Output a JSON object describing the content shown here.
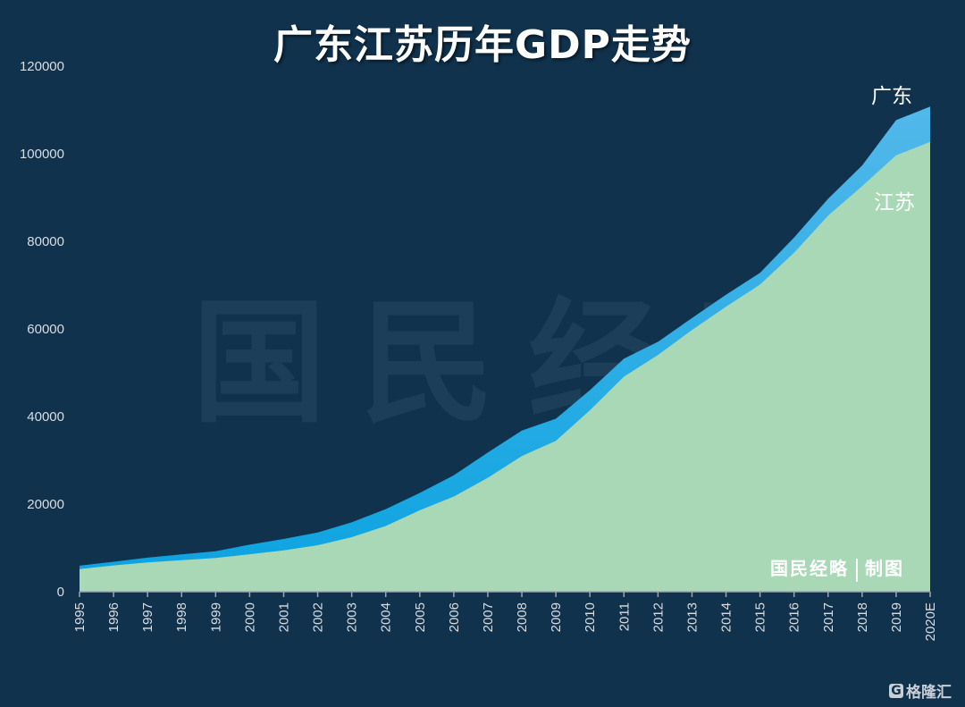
{
  "title": "广东江苏历年GDP走势",
  "labels": {
    "guangdong": "广东",
    "jiangsu": "江苏"
  },
  "watermark": "国民经略",
  "credit": {
    "org": "国民经略",
    "role": "制图"
  },
  "logo": {
    "icon": "G",
    "text": "格隆汇"
  },
  "colors": {
    "background": "#10324d",
    "guangdong_bottom": "#0aa3e0",
    "guangdong_top": "#52b8ea",
    "jiangsu": "#a8d8b6",
    "axis": "#9aa5b0",
    "tick_text": "#d9dde2"
  },
  "chart_data": {
    "type": "area",
    "title": "广东江苏历年GDP走势",
    "xlabel": "",
    "ylabel": "",
    "ylim": [
      0,
      120000
    ],
    "yticks": [
      0,
      20000,
      40000,
      60000,
      80000,
      100000,
      120000
    ],
    "grid": false,
    "legend": "inline labels at right end",
    "categories": [
      "1995",
      "1996",
      "1997",
      "1998",
      "1999",
      "2000",
      "2001",
      "2002",
      "2003",
      "2004",
      "2005",
      "2006",
      "2007",
      "2008",
      "2009",
      "2010",
      "2011",
      "2012",
      "2013",
      "2014",
      "2015",
      "2016",
      "2017",
      "2018",
      "2019",
      "2020E"
    ],
    "series": [
      {
        "name": "广东",
        "values": [
          5933,
          6835,
          7775,
          8531,
          9251,
          10741,
          12039,
          13502,
          15845,
          18865,
          22557,
          26588,
          31777,
          36797,
          39483,
          46013,
          53210,
          57068,
          62475,
          67810,
          72813,
          80855,
          89705,
          97278,
          107671,
          110760
        ]
      },
      {
        "name": "江苏",
        "values": [
          5155,
          6004,
          6680,
          7200,
          7698,
          8554,
          9457,
          10607,
          12443,
          15004,
          18599,
          21742,
          26018,
          30982,
          34457,
          41425,
          49110,
          54058,
          59753,
          65088,
          70116,
          77388,
          85870,
          92595,
          99632,
          102719
        ]
      }
    ]
  }
}
